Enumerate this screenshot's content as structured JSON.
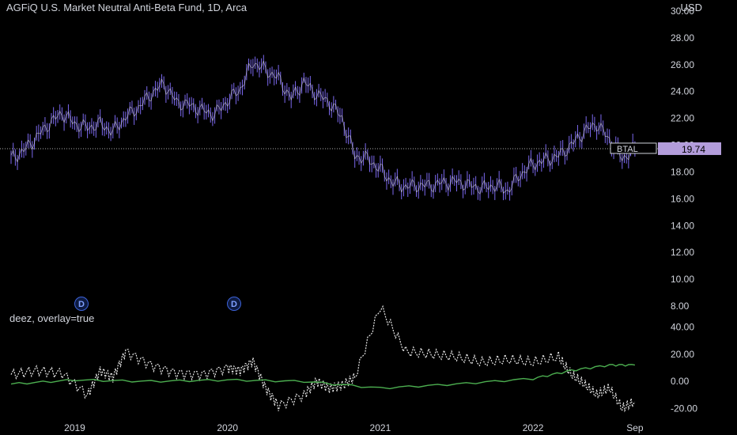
{
  "header": {
    "title": "AGFiQ U.S. Market Neutral Anti-Beta Fund, 1D, Arca",
    "currency": "USD"
  },
  "indicator": {
    "label": "deez, overlay=true"
  },
  "price_marker": {
    "symbol": "BTAL",
    "value": "19.74"
  },
  "dividend_markers": [
    {
      "label": "D"
    },
    {
      "label": "D"
    }
  ],
  "colors": {
    "price": "#7b68ee",
    "indicator_white": "#e6e6e6",
    "indicator_green": "#4caf50",
    "marker_bg": "#b39ddb",
    "badge": "#3d63d9"
  },
  "chart_data": [
    {
      "type": "ohlc",
      "series": [
        {
          "name": "BTAL",
          "x": [
            "2018-08",
            "2018-09",
            "2018-10",
            "2018-11",
            "2018-12",
            "2019-01",
            "2019-02",
            "2019-03",
            "2019-04",
            "2019-05",
            "2019-06",
            "2019-07",
            "2019-08",
            "2019-09",
            "2019-10",
            "2019-11",
            "2019-12",
            "2020-01",
            "2020-02",
            "2020-03",
            "2020-04",
            "2020-05",
            "2020-06",
            "2020-07",
            "2020-08",
            "2020-09",
            "2020-10",
            "2020-11",
            "2020-12",
            "2021-01",
            "2021-02",
            "2021-03",
            "2021-04",
            "2021-05",
            "2021-06",
            "2021-07",
            "2021-08",
            "2021-09",
            "2021-10",
            "2021-11",
            "2021-12",
            "2022-01",
            "2022-02",
            "2022-03",
            "2022-04",
            "2022-05",
            "2022-06",
            "2022-07",
            "2022-08",
            "2022-09"
          ],
          "values": [
            19.0,
            19.6,
            20.6,
            21.6,
            22.4,
            21.6,
            21.3,
            21.6,
            21.0,
            22.1,
            22.8,
            23.8,
            24.6,
            23.2,
            23.0,
            22.6,
            22.3,
            23.3,
            24.2,
            26.2,
            25.6,
            25.0,
            23.5,
            24.7,
            23.8,
            23.2,
            22.0,
            19.2,
            19.0,
            18.2,
            17.2,
            16.9,
            17.0,
            17.0,
            17.2,
            17.3,
            17.0,
            16.8,
            17.0,
            16.6,
            17.8,
            18.6,
            18.9,
            19.2,
            20.0,
            21.0,
            21.6,
            20.4,
            19.0,
            19.74
          ]
        }
      ],
      "yticks": [
        "8.00",
        "10.00",
        "12.00",
        "14.00",
        "16.00",
        "18.00",
        "20.00",
        "22.00",
        "24.00",
        "26.00",
        "28.00",
        "30.00"
      ],
      "ylim": [
        8,
        30
      ]
    },
    {
      "type": "line",
      "series": [
        {
          "name": "deez (white)",
          "x": [
            "2018-08",
            "2018-10",
            "2018-12",
            "2019-02",
            "2019-03",
            "2019-04",
            "2019-05",
            "2019-07",
            "2019-09",
            "2019-11",
            "2020-01",
            "2020-02",
            "2020-03",
            "2020-04",
            "2020-05",
            "2020-07",
            "2020-08",
            "2020-09",
            "2020-10",
            "2020-11",
            "2021-01",
            "2021-03",
            "2021-05",
            "2021-07",
            "2021-09",
            "2021-11",
            "2022-01",
            "2022-03",
            "2022-04",
            "2022-05",
            "2022-06",
            "2022-07",
            "2022-08",
            "2022-09"
          ],
          "values": [
            5,
            8,
            6,
            -10,
            8,
            3,
            22,
            12,
            6,
            5,
            10,
            8,
            15,
            -5,
            -18,
            -10,
            0,
            -5,
            -3,
            3,
            55,
            22,
            20,
            18,
            14,
            16,
            14,
            18,
            5,
            -2,
            -10,
            -5,
            -20,
            -15
          ]
        },
        {
          "name": "deez (green)",
          "x": [
            "2018-08",
            "2019-01",
            "2019-07",
            "2020-01",
            "2020-07",
            "2021-01",
            "2021-07",
            "2022-01",
            "2022-04",
            "2022-07",
            "2022-09"
          ],
          "values": [
            -2,
            1,
            0,
            1,
            0,
            -5,
            -2,
            2,
            8,
            12,
            12
          ]
        }
      ],
      "yticks": [
        "-20.00",
        "0.00",
        "20.00",
        "40.00"
      ],
      "ylim": [
        -25,
        45
      ]
    }
  ],
  "xaxis": {
    "labels": [
      "2019",
      "2020",
      "2021",
      "2022",
      "Sep"
    ]
  }
}
